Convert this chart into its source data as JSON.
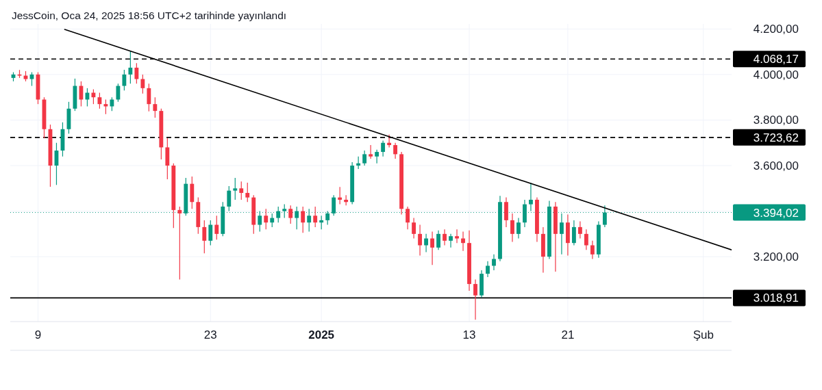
{
  "chart_data": {
    "type": "candlestick",
    "title": "JessCoin, Oca 24, 2025 18:56 UTC+2 tarihinde yayınlandı",
    "x": [
      "2024-12-07T00:00",
      "2024-12-07T12:00",
      "2024-12-08T00:00",
      "2024-12-08T12:00",
      "2024-12-09T00:00",
      "2024-12-09T12:00",
      "2024-12-10T00:00",
      "2024-12-10T12:00",
      "2024-12-11T00:00",
      "2024-12-11T12:00",
      "2024-12-12T00:00",
      "2024-12-12T12:00",
      "2024-12-13T00:00",
      "2024-12-13T12:00",
      "2024-12-14T00:00",
      "2024-12-14T12:00",
      "2024-12-15T00:00",
      "2024-12-15T12:00",
      "2024-12-16T00:00",
      "2024-12-16T12:00",
      "2024-12-17T00:00",
      "2024-12-17T12:00",
      "2024-12-18T00:00",
      "2024-12-18T12:00",
      "2024-12-19T00:00",
      "2024-12-19T12:00",
      "2024-12-20T00:00",
      "2024-12-20T12:00",
      "2024-12-21T00:00",
      "2024-12-21T12:00",
      "2024-12-22T00:00",
      "2024-12-22T12:00",
      "2024-12-23T00:00",
      "2024-12-23T12:00",
      "2024-12-24T00:00",
      "2024-12-24T12:00",
      "2024-12-25T00:00",
      "2024-12-25T12:00",
      "2024-12-26T00:00",
      "2024-12-26T12:00",
      "2024-12-27T00:00",
      "2024-12-27T12:00",
      "2024-12-28T00:00",
      "2024-12-28T12:00",
      "2024-12-29T00:00",
      "2024-12-29T12:00",
      "2024-12-30T00:00",
      "2024-12-30T12:00",
      "2024-12-31T00:00",
      "2024-12-31T12:00",
      "2025-01-01T00:00",
      "2025-01-01T12:00",
      "2025-01-02T00:00",
      "2025-01-02T12:00",
      "2025-01-03T00:00",
      "2025-01-03T12:00",
      "2025-01-04T00:00",
      "2025-01-04T12:00",
      "2025-01-05T00:00",
      "2025-01-05T12:00",
      "2025-01-06T00:00",
      "2025-01-06T12:00",
      "2025-01-07T00:00",
      "2025-01-07T12:00",
      "2025-01-08T00:00",
      "2025-01-08T12:00",
      "2025-01-09T00:00",
      "2025-01-09T12:00",
      "2025-01-10T00:00",
      "2025-01-10T12:00",
      "2025-01-11T00:00",
      "2025-01-11T12:00",
      "2025-01-12T00:00",
      "2025-01-12T12:00",
      "2025-01-13T00:00",
      "2025-01-13T12:00",
      "2025-01-14T00:00",
      "2025-01-14T12:00",
      "2025-01-15T00:00",
      "2025-01-15T12:00",
      "2025-01-16T00:00",
      "2025-01-16T12:00",
      "2025-01-17T00:00",
      "2025-01-17T12:00",
      "2025-01-18T00:00",
      "2025-01-18T12:00",
      "2025-01-19T00:00",
      "2025-01-19T12:00",
      "2025-01-20T00:00",
      "2025-01-20T12:00",
      "2025-01-21T00:00",
      "2025-01-21T12:00",
      "2025-01-22T00:00",
      "2025-01-22T12:00",
      "2025-01-23T00:00",
      "2025-01-23T12:00",
      "2025-01-24T00:00"
    ],
    "ohlc": [
      [
        3985,
        4010,
        3970,
        4000
      ],
      [
        4000,
        4020,
        3985,
        3995
      ],
      [
        3995,
        4015,
        3970,
        3980
      ],
      [
        3980,
        4010,
        3950,
        4000
      ],
      [
        4000,
        4010,
        3870,
        3890
      ],
      [
        3890,
        3900,
        3720,
        3760
      ],
      [
        3760,
        3780,
        3507,
        3600
      ],
      [
        3600,
        3700,
        3515,
        3666
      ],
      [
        3666,
        3790,
        3640,
        3760
      ],
      [
        3760,
        3880,
        3740,
        3850
      ],
      [
        3850,
        3982,
        3840,
        3950
      ],
      [
        3950,
        3970,
        3860,
        3890
      ],
      [
        3890,
        3940,
        3860,
        3920
      ],
      [
        3920,
        3935,
        3870,
        3900
      ],
      [
        3900,
        3920,
        3850,
        3870
      ],
      [
        3870,
        3890,
        3826,
        3860
      ],
      [
        3860,
        3900,
        3840,
        3890
      ],
      [
        3890,
        3960,
        3880,
        3950
      ],
      [
        3950,
        4021,
        3930,
        4000
      ],
      [
        4000,
        4102,
        3960,
        4030
      ],
      [
        4030,
        4050,
        3960,
        3980
      ],
      [
        3980,
        4000,
        3916,
        3940
      ],
      [
        3940,
        3960,
        3838,
        3870
      ],
      [
        3870,
        3900,
        3810,
        3840
      ],
      [
        3840,
        3850,
        3627,
        3680
      ],
      [
        3680,
        3720,
        3540,
        3600
      ],
      [
        3600,
        3610,
        3326,
        3405
      ],
      [
        3405,
        3420,
        3100,
        3390
      ],
      [
        3390,
        3546,
        3380,
        3520
      ],
      [
        3520,
        3552,
        3410,
        3440
      ],
      [
        3440,
        3460,
        3300,
        3330
      ],
      [
        3330,
        3360,
        3215,
        3270
      ],
      [
        3270,
        3360,
        3250,
        3340
      ],
      [
        3340,
        3380,
        3275,
        3300
      ],
      [
        3300,
        3440,
        3290,
        3420
      ],
      [
        3420,
        3510,
        3400,
        3490
      ],
      [
        3490,
        3546,
        3450,
        3500
      ],
      [
        3500,
        3530,
        3450,
        3480
      ],
      [
        3480,
        3525,
        3440,
        3460
      ],
      [
        3460,
        3470,
        3300,
        3340
      ],
      [
        3340,
        3400,
        3310,
        3380
      ],
      [
        3380,
        3410,
        3320,
        3350
      ],
      [
        3350,
        3390,
        3330,
        3370
      ],
      [
        3370,
        3420,
        3350,
        3400
      ],
      [
        3400,
        3430,
        3370,
        3410
      ],
      [
        3410,
        3425,
        3345,
        3370
      ],
      [
        3370,
        3420,
        3320,
        3400
      ],
      [
        3400,
        3420,
        3305,
        3350
      ],
      [
        3350,
        3410,
        3310,
        3380
      ],
      [
        3380,
        3420,
        3330,
        3350
      ],
      [
        3350,
        3380,
        3320,
        3360
      ],
      [
        3360,
        3400,
        3340,
        3390
      ],
      [
        3390,
        3470,
        3380,
        3460
      ],
      [
        3460,
        3506,
        3430,
        3450
      ],
      [
        3450,
        3470,
        3425,
        3440
      ],
      [
        3440,
        3615,
        3430,
        3600
      ],
      [
        3600,
        3640,
        3585,
        3610
      ],
      [
        3610,
        3666,
        3600,
        3650
      ],
      [
        3650,
        3690,
        3630,
        3640
      ],
      [
        3640,
        3670,
        3610,
        3660
      ],
      [
        3660,
        3710,
        3640,
        3700
      ],
      [
        3700,
        3736,
        3680,
        3690
      ],
      [
        3690,
        3700,
        3630,
        3650
      ],
      [
        3650,
        3660,
        3385,
        3410
      ],
      [
        3410,
        3420,
        3320,
        3350
      ],
      [
        3350,
        3370,
        3280,
        3300
      ],
      [
        3300,
        3340,
        3205,
        3250
      ],
      [
        3250,
        3300,
        3220,
        3280
      ],
      [
        3280,
        3310,
        3164,
        3240
      ],
      [
        3240,
        3315,
        3230,
        3300
      ],
      [
        3300,
        3320,
        3250,
        3270
      ],
      [
        3270,
        3300,
        3240,
        3290
      ],
      [
        3290,
        3320,
        3260,
        3280
      ],
      [
        3280,
        3310,
        3225,
        3260
      ],
      [
        3260,
        3315,
        3050,
        3080
      ],
      [
        3080,
        3100,
        2923,
        3030
      ],
      [
        3030,
        3140,
        3020,
        3125
      ],
      [
        3125,
        3180,
        3110,
        3160
      ],
      [
        3160,
        3210,
        3140,
        3190
      ],
      [
        3190,
        3467,
        3180,
        3440
      ],
      [
        3440,
        3460,
        3330,
        3360
      ],
      [
        3360,
        3390,
        3265,
        3300
      ],
      [
        3300,
        3370,
        3280,
        3350
      ],
      [
        3350,
        3450,
        3330,
        3430
      ],
      [
        3430,
        3525,
        3400,
        3450
      ],
      [
        3450,
        3460,
        3265,
        3300
      ],
      [
        3300,
        3330,
        3130,
        3200
      ],
      [
        3200,
        3445,
        3190,
        3420
      ],
      [
        3420,
        3440,
        3134,
        3300
      ],
      [
        3300,
        3390,
        3210,
        3350
      ],
      [
        3350,
        3385,
        3205,
        3260
      ],
      [
        3260,
        3360,
        3250,
        3330
      ],
      [
        3330,
        3355,
        3280,
        3300
      ],
      [
        3300,
        3320,
        3230,
        3250
      ],
      [
        3250,
        3270,
        3190,
        3210
      ],
      [
        3210,
        3355,
        3195,
        3340
      ],
      [
        3340,
        3425,
        3330,
        3394
      ]
    ],
    "series": [
      {
        "type": "line",
        "color": "#000000",
        "x": [
          "2024-12-11T04:00",
          "2025-02-03T07:00"
        ],
        "values": [
          4198,
          3230
        ]
      }
    ],
    "xlim": [
      "2024-12-06T18:00",
      "2025-02-03T07:00"
    ],
    "xticks": [
      {
        "value": "2024-12-09",
        "label": "9"
      },
      {
        "value": "2024-12-23",
        "label": "23"
      },
      {
        "value": "2025-01-01",
        "label": "2025"
      },
      {
        "value": "2025-01-13",
        "label": "13"
      },
      {
        "value": "2025-01-21",
        "label": "21"
      },
      {
        "value": "2025-02-01",
        "label": "Şub"
      }
    ],
    "ylim": [
      2915,
      4222
    ],
    "yticks": [
      {
        "value": 3200,
        "label": "3.200,00"
      },
      {
        "value": 3400,
        "label": null
      },
      {
        "value": 3600,
        "label": "3.600,00"
      },
      {
        "value": 3800,
        "label": "3.800,00"
      },
      {
        "value": 4000,
        "label": "4.000,00"
      },
      {
        "value": 4200,
        "label": "4.200,00"
      }
    ],
    "ref_lines": [
      {
        "axis": "y",
        "value": 4068.17,
        "label": "4.068,17",
        "color": "#000000",
        "line_style": "dashed"
      },
      {
        "axis": "y",
        "value": 3723.62,
        "label": "3.723,62",
        "color": "#000000",
        "line_style": "dashed"
      },
      {
        "axis": "y",
        "value": 3394.02,
        "label": "3.394,02",
        "color": "#089981",
        "line_style": "dotted"
      },
      {
        "axis": "y",
        "value": 3018.91,
        "label": "3.018,91",
        "color": "#000000",
        "line_style": "solid"
      }
    ],
    "grid": true
  }
}
